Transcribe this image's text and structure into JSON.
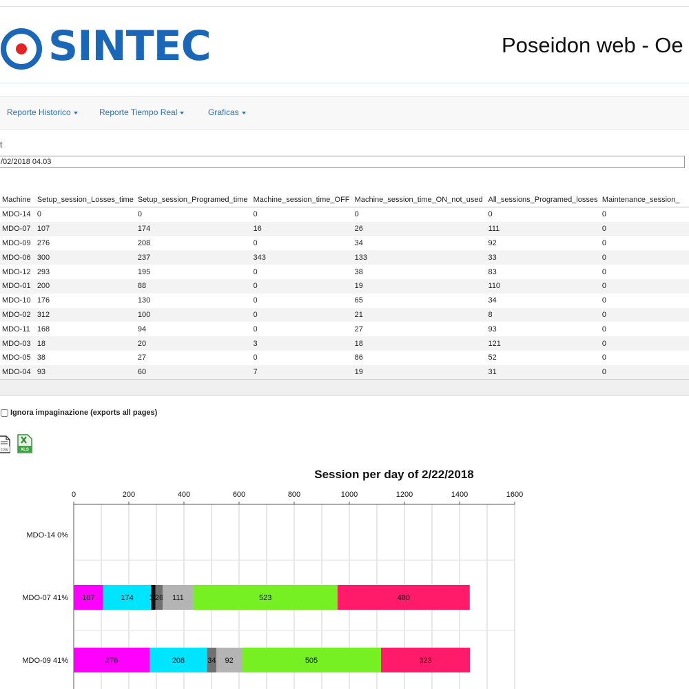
{
  "header": {
    "logo_text": "SINTEC",
    "app_title": "Poseidon web - Oe"
  },
  "nav": {
    "items": [
      {
        "label": "Reporte Historico"
      },
      {
        "label": "Reporte Tiempo Real"
      },
      {
        "label": "Graficas"
      }
    ]
  },
  "filter": {
    "label": "t",
    "date_value": "/02/2018 04.03"
  },
  "table": {
    "headers": [
      "Machine",
      "Setup_session_Losses_time",
      "Setup_session_Programed_time",
      "Machine_session_time_OFF",
      "Machine_session_time_ON_not_used",
      "All_sessions_Programed_losses",
      "Maintenance_session_"
    ],
    "rows": [
      [
        "MDO-14",
        "0",
        "0",
        "0",
        "0",
        "0",
        "0"
      ],
      [
        "MDO-07",
        "107",
        "174",
        "16",
        "26",
        "111",
        "0"
      ],
      [
        "MDO-09",
        "276",
        "208",
        "0",
        "34",
        "92",
        "0"
      ],
      [
        "MDO-06",
        "300",
        "237",
        "343",
        "133",
        "33",
        "0"
      ],
      [
        "MDO-12",
        "293",
        "195",
        "0",
        "38",
        "83",
        "0"
      ],
      [
        "MDO-01",
        "200",
        "88",
        "0",
        "19",
        "110",
        "0"
      ],
      [
        "MDO-10",
        "176",
        "130",
        "0",
        "65",
        "34",
        "0"
      ],
      [
        "MDO-02",
        "312",
        "100",
        "0",
        "21",
        "8",
        "0"
      ],
      [
        "MDO-11",
        "168",
        "94",
        "0",
        "27",
        "93",
        "0"
      ],
      [
        "MDO-03",
        "18",
        "20",
        "3",
        "18",
        "121",
        "0"
      ],
      [
        "MDO-05",
        "38",
        "27",
        "0",
        "86",
        "52",
        "0"
      ],
      [
        "MDO-04",
        "93",
        "60",
        "7",
        "19",
        "31",
        "0"
      ]
    ]
  },
  "export": {
    "ignore_label": "Ignora impaginazione (exports all pages)",
    "csv_label": "CSV",
    "xls_label": "XLS"
  },
  "colors": {
    "brand": "#1a67b8",
    "brand_dot": "#e32424",
    "link": "#2a6fb5"
  },
  "chart_data": {
    "type": "bar",
    "orientation": "horizontal",
    "stacked": true,
    "title": "Session per day of 2/22/2018",
    "xlim": [
      0,
      1600
    ],
    "x_ticks": [
      0,
      200,
      400,
      600,
      800,
      1000,
      1200,
      1400,
      1600
    ],
    "grid": true,
    "categories": [
      "MDO-14 0%",
      "MDO-07 41%",
      "MDO-09 41%"
    ],
    "series": [
      {
        "color": "#ff00ff",
        "values": [
          0,
          107,
          276
        ]
      },
      {
        "color": "#00e5ff",
        "values": [
          0,
          174,
          208
        ]
      },
      {
        "color": "#111111",
        "values": [
          0,
          16,
          0
        ]
      },
      {
        "color": "#707070",
        "values": [
          0,
          26,
          34
        ]
      },
      {
        "color": "#b4b4b4",
        "values": [
          0,
          111,
          92
        ]
      },
      {
        "color": "#77f023",
        "values": [
          0,
          523,
          505
        ]
      },
      {
        "color": "#ff1a6a",
        "values": [
          0,
          480,
          323
        ]
      }
    ],
    "data_labels": [
      [],
      [
        "107",
        "174",
        "16",
        "26",
        "111",
        "523",
        "480"
      ],
      [
        "276",
        "208",
        "",
        "34",
        "92",
        "505",
        "323"
      ]
    ]
  }
}
